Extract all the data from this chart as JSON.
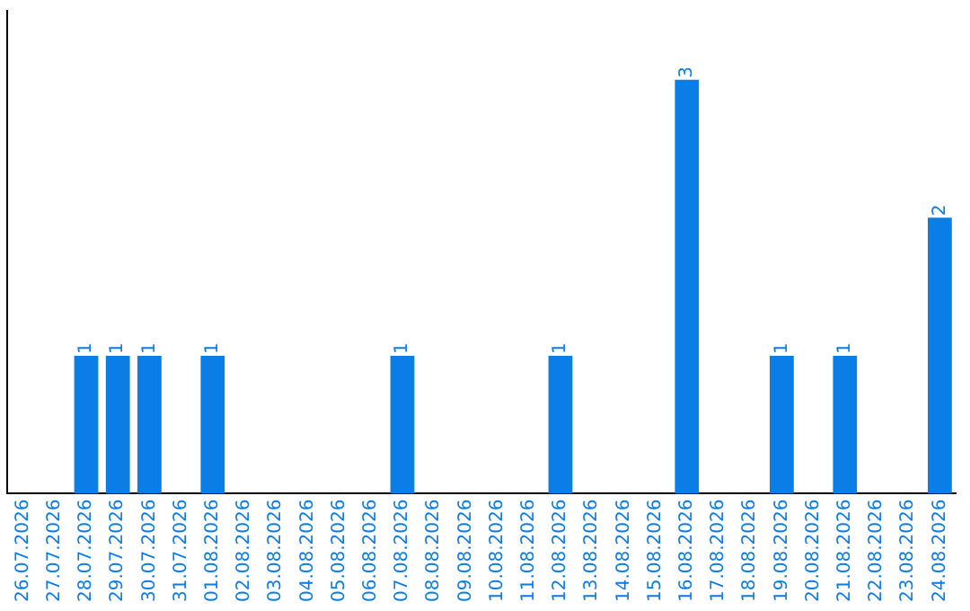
{
  "chart_data": {
    "type": "bar",
    "categories": [
      "26.07.2026",
      "27.07.2026",
      "28.07.2026",
      "29.07.2026",
      "30.07.2026",
      "31.07.2026",
      "01.08.2026",
      "02.08.2026",
      "03.08.2026",
      "04.08.2026",
      "05.08.2026",
      "06.08.2026",
      "07.08.2026",
      "08.08.2026",
      "09.08.2026",
      "10.08.2026",
      "11.08.2026",
      "12.08.2026",
      "13.08.2026",
      "14.08.2026",
      "15.08.2026",
      "16.08.2026",
      "17.08.2026",
      "18.08.2026",
      "19.08.2026",
      "20.08.2026",
      "21.08.2026",
      "22.08.2026",
      "23.08.2026",
      "24.08.2026"
    ],
    "values": [
      0,
      0,
      1,
      1,
      1,
      0,
      1,
      0,
      0,
      0,
      0,
      0,
      1,
      0,
      0,
      0,
      0,
      1,
      0,
      0,
      0,
      3,
      0,
      0,
      1,
      0,
      1,
      0,
      0,
      2
    ],
    "value_labels": [
      null,
      null,
      "1",
      "1",
      "1",
      null,
      "1",
      null,
      null,
      null,
      null,
      null,
      "1",
      null,
      null,
      null,
      null,
      "1",
      null,
      null,
      null,
      "3",
      null,
      null,
      "1",
      null,
      "1",
      null,
      null,
      "2"
    ],
    "color": "#0a7ee6",
    "grid": false,
    "legend": false,
    "tick_labels": "x"
  }
}
